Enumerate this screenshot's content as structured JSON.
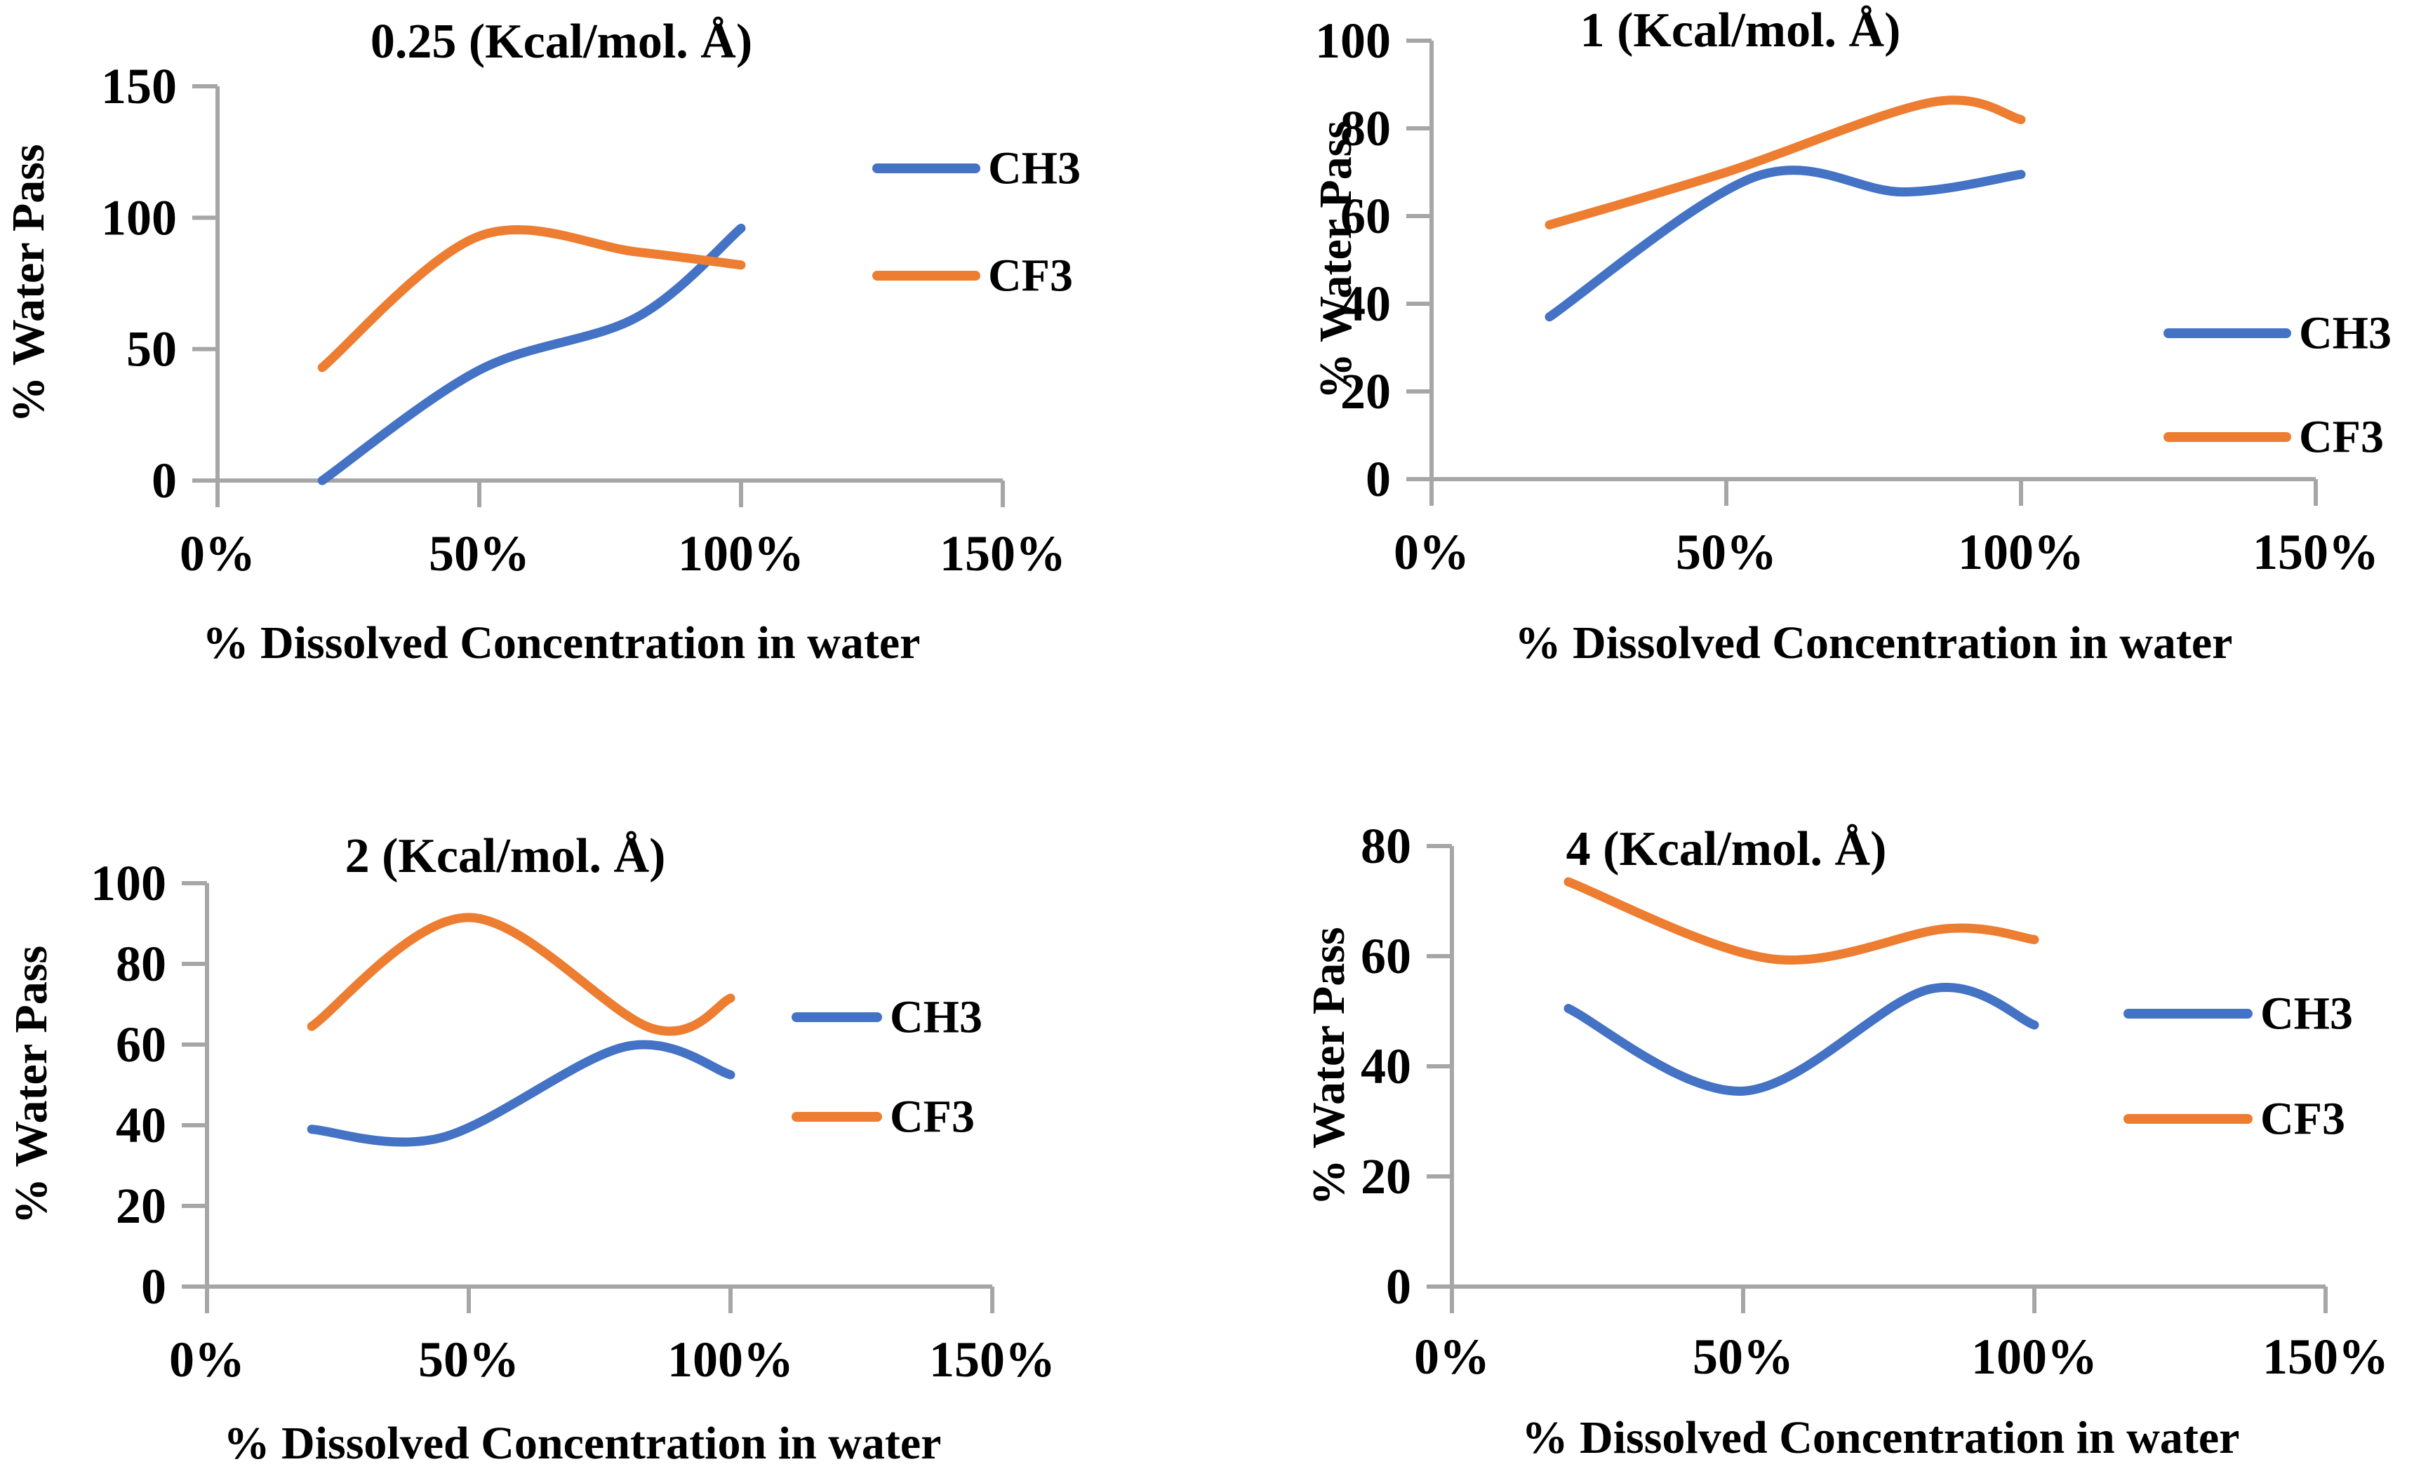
{
  "figure": {
    "background": "#ffffff",
    "text_color": "#000000",
    "axis_color": "#A6A6A6",
    "series_colors": {
      "CH3": "#4472C4",
      "CF3": "#ED7D31"
    }
  },
  "chart_data": [
    {
      "type": "line",
      "smooth": true,
      "title": "0.25 (Kcal/mol. Å)",
      "xlabel": "% Dissolved Concentration in water",
      "ylabel": "% Water Pass",
      "x_tick_labels": [
        "0%",
        "50%",
        "100%",
        "150%"
      ],
      "x_tick_values": [
        0,
        50,
        100,
        150
      ],
      "y_tick_labels": [
        "0",
        "50",
        "100",
        "150"
      ],
      "y_tick_values": [
        0,
        50,
        100,
        150
      ],
      "ylim": [
        0,
        150
      ],
      "xlim_percent": [
        0,
        150
      ],
      "grid": false,
      "legend_position": "inside-upper-right",
      "legend": [
        "CH3",
        "CF3"
      ],
      "series": [
        {
          "name": "CH3",
          "color": "#4472C4",
          "points": [
            [
              20,
              0
            ],
            [
              50,
              42
            ],
            [
              80,
              62
            ],
            [
              100,
              96
            ]
          ]
        },
        {
          "name": "CF3",
          "color": "#ED7D31",
          "points": [
            [
              20,
              43
            ],
            [
              50,
              93
            ],
            [
              80,
              87
            ],
            [
              100,
              82
            ]
          ]
        }
      ]
    },
    {
      "type": "line",
      "smooth": true,
      "title": "1 (Kcal/mol. Å)",
      "xlabel": "% Dissolved Concentration in water",
      "ylabel": "% Water Pass",
      "x_tick_labels": [
        "0%",
        "50%",
        "100%",
        "150%"
      ],
      "x_tick_values": [
        0,
        50,
        100,
        150
      ],
      "y_tick_labels": [
        "0",
        "20",
        "40",
        "60",
        "80",
        "100"
      ],
      "y_tick_values": [
        0,
        20,
        40,
        60,
        80,
        100
      ],
      "ylim": [
        0,
        100
      ],
      "xlim_percent": [
        0,
        150
      ],
      "grid": false,
      "legend_position": "inside-lower-right",
      "legend": [
        "CH3",
        "CF3"
      ],
      "series": [
        {
          "name": "CH3",
          "color": "#4472C4",
          "points": [
            [
              20,
              37
            ],
            [
              55,
              69
            ],
            [
              80,
              65.5
            ],
            [
              100,
              69.5
            ]
          ]
        },
        {
          "name": "CF3",
          "color": "#ED7D31",
          "points": [
            [
              20,
              58
            ],
            [
              50,
              70
            ],
            [
              85,
              86
            ],
            [
              100,
              82
            ]
          ]
        }
      ]
    },
    {
      "type": "line",
      "smooth": true,
      "title": "2 (Kcal/mol. Å)",
      "xlabel": "% Dissolved Concentration in water",
      "ylabel": "% Water Pass",
      "x_tick_labels": [
        "0%",
        "50%",
        "100%",
        "150%"
      ],
      "x_tick_values": [
        0,
        50,
        100,
        150
      ],
      "y_tick_labels": [
        "0",
        "20",
        "40",
        "60",
        "80",
        "100"
      ],
      "y_tick_values": [
        0,
        20,
        40,
        60,
        80,
        100
      ],
      "ylim": [
        0,
        100
      ],
      "xlim_percent": [
        0,
        150
      ],
      "grid": false,
      "legend_position": "inside-middle-right",
      "legend": [
        "CH3",
        "CF3"
      ],
      "series": [
        {
          "name": "CH3",
          "color": "#4472C4",
          "points": [
            [
              20,
              39
            ],
            [
              45,
              37
            ],
            [
              80,
              59.5
            ],
            [
              100,
              52.5
            ]
          ]
        },
        {
          "name": "CF3",
          "color": "#ED7D31",
          "points": [
            [
              20,
              64.5
            ],
            [
              50,
              91.5
            ],
            [
              85,
              64
            ],
            [
              100,
              71.5
            ]
          ]
        }
      ]
    },
    {
      "type": "line",
      "smooth": true,
      "title": "4 (Kcal/mol. Å)",
      "xlabel": "% Dissolved Concentration in water",
      "ylabel": "% Water Pass",
      "x_tick_labels": [
        "0%",
        "50%",
        "100%",
        "150%"
      ],
      "x_tick_values": [
        0,
        50,
        100,
        150
      ],
      "y_tick_labels": [
        "0",
        "20",
        "40",
        "60",
        "80"
      ],
      "y_tick_values": [
        0,
        20,
        40,
        60,
        80
      ],
      "ylim": [
        0,
        80
      ],
      "xlim_percent": [
        0,
        150
      ],
      "grid": false,
      "legend_position": "inside-middle-right",
      "legend": [
        "CH3",
        "CF3"
      ],
      "series": [
        {
          "name": "CH3",
          "color": "#4472C4",
          "points": [
            [
              20,
              50.5
            ],
            [
              50,
              35.5
            ],
            [
              82,
              54
            ],
            [
              100,
              47.5
            ]
          ]
        },
        {
          "name": "CF3",
          "color": "#ED7D31",
          "points": [
            [
              20,
              73.5
            ],
            [
              55,
              59.5
            ],
            [
              85,
              65
            ],
            [
              100,
              63
            ]
          ]
        }
      ]
    }
  ]
}
